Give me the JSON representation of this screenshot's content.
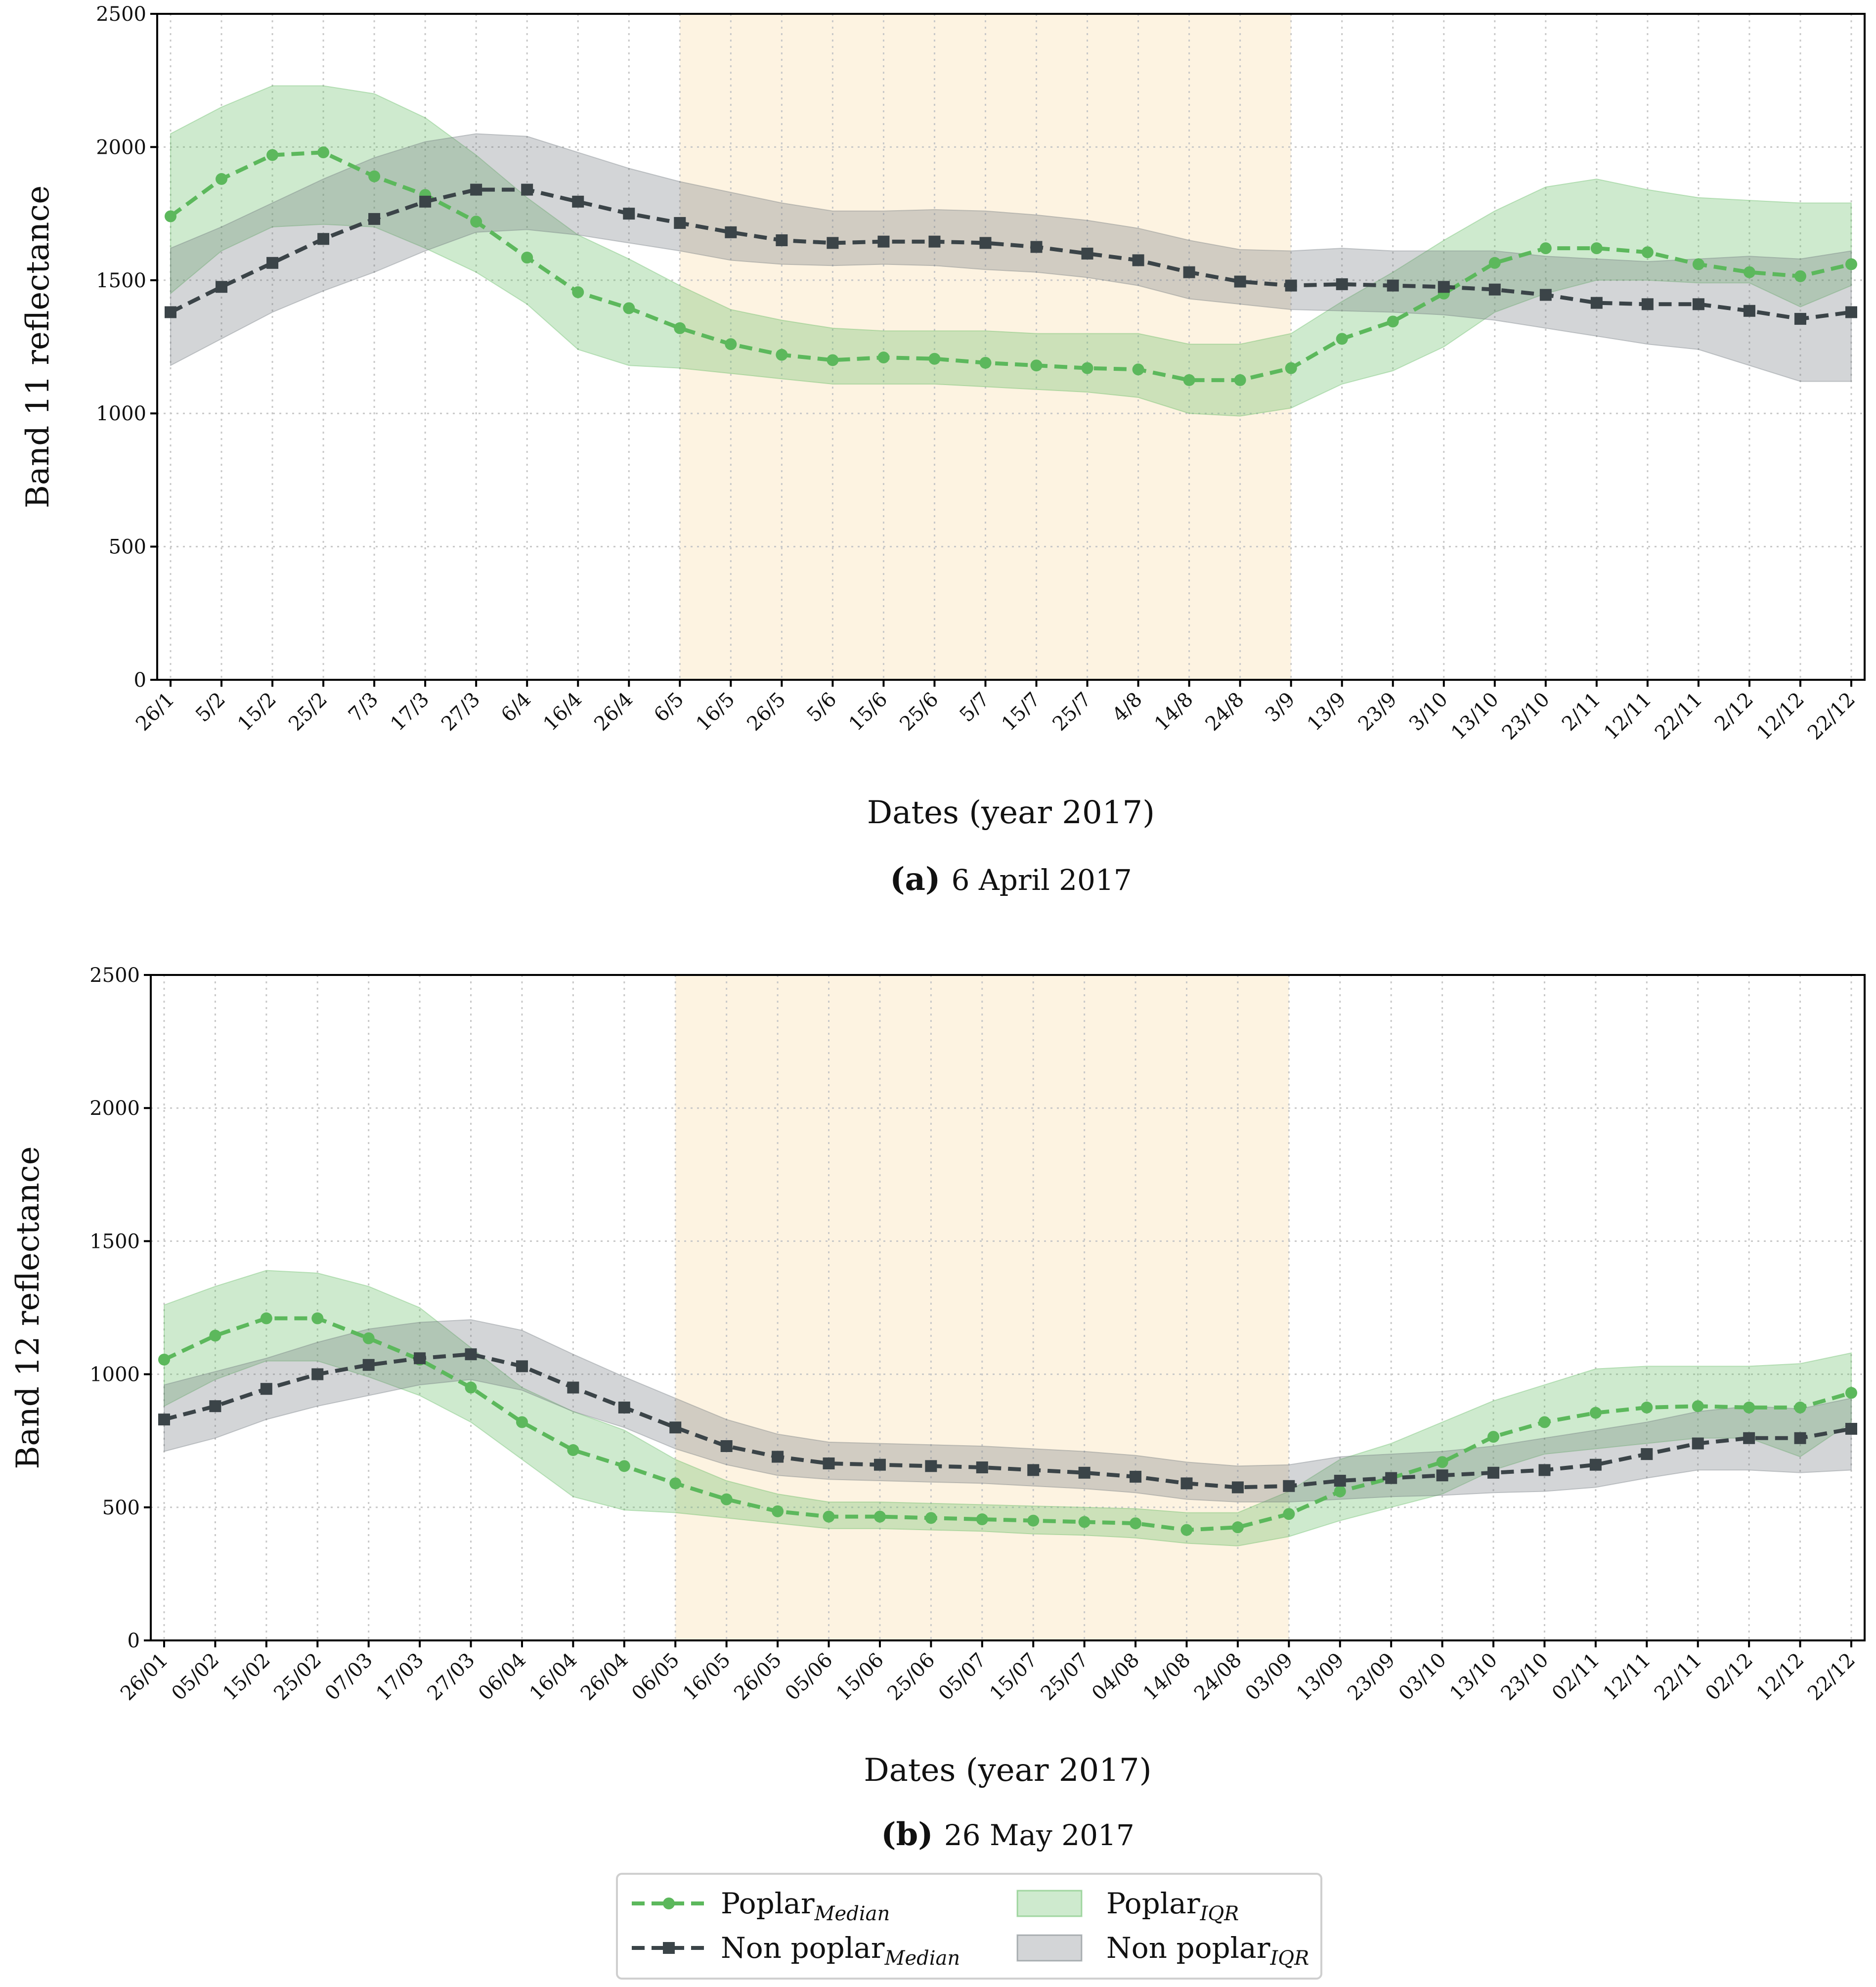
{
  "chart_data": [
    {
      "type": "line",
      "panel": "a",
      "caption_letter": "(a)",
      "caption_text": "6 April 2017",
      "xlabel": "Dates (year 2017)",
      "ylabel": "Band 11 reflectance",
      "ylim": [
        0,
        2500
      ],
      "yticks": [
        0,
        500,
        1000,
        1500,
        2000,
        2500
      ],
      "grid": true,
      "highlight_span": [
        "6/5",
        "3/9"
      ],
      "highlight_color": "#fdf3e1",
      "categories": [
        "26/1",
        "5/2",
        "15/2",
        "25/2",
        "7/3",
        "17/3",
        "27/3",
        "6/4",
        "16/4",
        "26/4",
        "6/5",
        "16/5",
        "26/5",
        "5/6",
        "15/6",
        "25/6",
        "5/7",
        "15/7",
        "25/7",
        "4/8",
        "14/8",
        "24/8",
        "3/9",
        "13/9",
        "23/9",
        "3/10",
        "13/10",
        "23/10",
        "2/11",
        "12/11",
        "22/11",
        "2/12",
        "12/12",
        "22/12"
      ],
      "series": [
        {
          "name": "Poplar_Median",
          "color": "#5cb85c",
          "marker": "circle",
          "values": [
            1740,
            1880,
            1970,
            1980,
            1890,
            1820,
            1720,
            1585,
            1455,
            1395,
            1320,
            1260,
            1220,
            1200,
            1210,
            1205,
            1190,
            1180,
            1170,
            1165,
            1125,
            1125,
            1170,
            1280,
            1345,
            1450,
            1565,
            1620,
            1620,
            1605,
            1560,
            1530,
            1515,
            1560
          ]
        },
        {
          "name": "Non poplar_Median",
          "color": "#3b4448",
          "marker": "square",
          "values": [
            1380,
            1475,
            1565,
            1655,
            1730,
            1795,
            1840,
            1840,
            1795,
            1750,
            1715,
            1680,
            1650,
            1640,
            1645,
            1645,
            1640,
            1625,
            1600,
            1575,
            1530,
            1495,
            1480,
            1485,
            1480,
            1475,
            1465,
            1445,
            1415,
            1410,
            1410,
            1385,
            1355,
            1380
          ]
        }
      ],
      "bands": [
        {
          "name": "Poplar_IQR",
          "color": "#5cb85c",
          "low": [
            1450,
            1610,
            1700,
            1710,
            1700,
            1620,
            1530,
            1410,
            1240,
            1180,
            1170,
            1150,
            1130,
            1110,
            1110,
            1110,
            1100,
            1090,
            1080,
            1060,
            1000,
            990,
            1020,
            1110,
            1160,
            1250,
            1380,
            1450,
            1500,
            1500,
            1490,
            1490,
            1400,
            1480
          ],
          "high": [
            2050,
            2150,
            2230,
            2230,
            2200,
            2110,
            1970,
            1810,
            1670,
            1580,
            1480,
            1390,
            1350,
            1320,
            1310,
            1310,
            1310,
            1300,
            1300,
            1300,
            1260,
            1260,
            1300,
            1420,
            1530,
            1650,
            1760,
            1850,
            1880,
            1840,
            1810,
            1800,
            1790,
            1790
          ]
        },
        {
          "name": "Non poplar_IQR",
          "color": "#6c757a",
          "low": [
            1180,
            1280,
            1380,
            1460,
            1530,
            1610,
            1680,
            1690,
            1670,
            1640,
            1610,
            1575,
            1560,
            1555,
            1560,
            1555,
            1540,
            1530,
            1510,
            1480,
            1430,
            1410,
            1390,
            1385,
            1380,
            1370,
            1350,
            1320,
            1290,
            1260,
            1240,
            1180,
            1120,
            1120
          ],
          "high": [
            1620,
            1700,
            1790,
            1880,
            1960,
            2020,
            2050,
            2040,
            1980,
            1920,
            1870,
            1830,
            1790,
            1760,
            1760,
            1765,
            1760,
            1745,
            1725,
            1695,
            1650,
            1615,
            1610,
            1620,
            1610,
            1610,
            1610,
            1590,
            1580,
            1570,
            1580,
            1590,
            1580,
            1610
          ]
        }
      ]
    },
    {
      "type": "line",
      "panel": "b",
      "caption_letter": "(b)",
      "caption_text": "26 May 2017",
      "xlabel": "Dates (year 2017)",
      "ylabel": "Band 12 reflectance",
      "ylim": [
        0,
        2500
      ],
      "yticks": [
        0,
        500,
        1000,
        1500,
        2000,
        2500
      ],
      "grid": true,
      "highlight_span": [
        "06/05",
        "03/09"
      ],
      "highlight_color": "#fdf3e1",
      "categories": [
        "26/01",
        "05/02",
        "15/02",
        "25/02",
        "07/03",
        "17/03",
        "27/03",
        "06/04",
        "16/04",
        "26/04",
        "06/05",
        "16/05",
        "26/05",
        "05/06",
        "15/06",
        "25/06",
        "05/07",
        "15/07",
        "25/07",
        "04/08",
        "14/08",
        "24/08",
        "03/09",
        "13/09",
        "23/09",
        "03/10",
        "13/10",
        "23/10",
        "02/11",
        "12/11",
        "22/11",
        "02/12",
        "12/12",
        "22/12"
      ],
      "series": [
        {
          "name": "Poplar_Median",
          "color": "#5cb85c",
          "marker": "circle",
          "values": [
            1055,
            1145,
            1210,
            1210,
            1135,
            1055,
            950,
            820,
            715,
            655,
            590,
            530,
            485,
            465,
            465,
            460,
            455,
            450,
            445,
            440,
            415,
            425,
            475,
            560,
            610,
            670,
            765,
            820,
            855,
            875,
            880,
            875,
            875,
            930
          ]
        },
        {
          "name": "Non poplar_Median",
          "color": "#3b4448",
          "marker": "square",
          "values": [
            830,
            880,
            945,
            1000,
            1035,
            1060,
            1075,
            1030,
            950,
            875,
            800,
            730,
            690,
            665,
            660,
            655,
            650,
            640,
            630,
            615,
            590,
            575,
            580,
            600,
            610,
            620,
            630,
            640,
            660,
            700,
            740,
            760,
            760,
            795
          ]
        }
      ],
      "bands": [
        {
          "name": "Poplar_IQR",
          "color": "#5cb85c",
          "low": [
            880,
            980,
            1050,
            1050,
            990,
            920,
            820,
            680,
            540,
            490,
            480,
            460,
            440,
            420,
            420,
            415,
            410,
            400,
            395,
            385,
            365,
            355,
            390,
            450,
            500,
            550,
            640,
            700,
            720,
            740,
            760,
            760,
            690,
            820
          ]
        },
        {
          "name": "Poplar_IQR_high",
          "color": "#5cb85c",
          "high": [
            1260,
            1330,
            1390,
            1380,
            1330,
            1250,
            1100,
            950,
            860,
            790,
            680,
            600,
            550,
            520,
            520,
            515,
            510,
            505,
            500,
            495,
            480,
            480,
            560,
            680,
            740,
            820,
            900,
            960,
            1020,
            1030,
            1030,
            1030,
            1040,
            1080
          ]
        },
        {
          "name": "Non poplar_IQR",
          "color": "#6c757a",
          "low": [
            710,
            760,
            830,
            880,
            920,
            960,
            980,
            940,
            860,
            800,
            720,
            660,
            620,
            605,
            600,
            595,
            590,
            580,
            570,
            555,
            530,
            520,
            520,
            530,
            540,
            545,
            555,
            560,
            575,
            610,
            640,
            640,
            630,
            640
          ],
          "high": [
            960,
            1010,
            1060,
            1120,
            1170,
            1195,
            1205,
            1165,
            1075,
            990,
            910,
            830,
            775,
            745,
            740,
            735,
            730,
            720,
            710,
            695,
            670,
            655,
            660,
            690,
            700,
            710,
            730,
            760,
            790,
            820,
            860,
            880,
            870,
            910
          ]
        }
      ]
    }
  ],
  "legend": {
    "items": [
      {
        "label": "Poplar",
        "sub": "Median",
        "kind": "line",
        "color": "#5cb85c",
        "marker": "circle"
      },
      {
        "label": "Poplar",
        "sub": "IQR",
        "kind": "patch",
        "color": "#5cb85c"
      },
      {
        "label": "Non poplar",
        "sub": "Median",
        "kind": "line",
        "color": "#3b4448",
        "marker": "square"
      },
      {
        "label": "Non poplar",
        "sub": "IQR",
        "kind": "patch",
        "color": "#6c757a"
      }
    ]
  }
}
